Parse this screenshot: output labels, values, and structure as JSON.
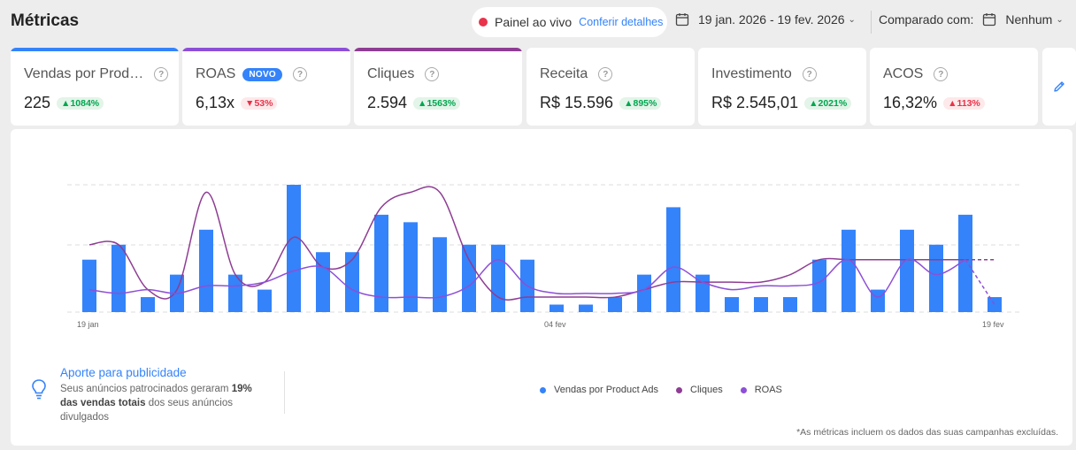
{
  "header": {
    "title": "Métricas",
    "live": {
      "label": "Painel ao vivo",
      "link": "Conferir detalhes"
    },
    "date_range": "19 jan. 2026 - 19 fev. 2026",
    "compare": {
      "label": "Comparado com:",
      "value": "Nenhum"
    }
  },
  "metrics": [
    {
      "title": "Vendas por Prod…",
      "value": "225",
      "delta": "1084%",
      "direction": "up",
      "accent": "#3483fa"
    },
    {
      "title": "ROAS",
      "badge": "NOVO",
      "value": "6,13x",
      "delta": "53%",
      "direction": "down",
      "accent": "#8d4fd7"
    },
    {
      "title": "Cliques",
      "value": "2.594",
      "delta": "1563%",
      "direction": "up",
      "accent": "#8e3d93"
    },
    {
      "title": "Receita",
      "value": "R$ 15.596",
      "delta": "895%",
      "direction": "up"
    },
    {
      "title": "Investimento",
      "value": "R$ 2.545,01",
      "delta": "2021%",
      "direction": "up"
    },
    {
      "title": "ACOS",
      "value": "16,32%",
      "delta": "113%",
      "direction": "down"
    }
  ],
  "insight": {
    "title": "Aporte para publicidade",
    "text_before": "Seus anúncios patrocinados geraram ",
    "text_bold": "19% das vendas totais",
    "text_after": " dos seus anúncios divulgados"
  },
  "footnote": "*As métricas incluem os dados das suas campanhas excluídas.",
  "colors": {
    "sales": "#3483fa",
    "clicks": "#8e3d93",
    "roas": "#8d4fd7",
    "positive": "#00a650",
    "negative": "#e8334a"
  },
  "chart_data": {
    "type": "bar",
    "x_tick_labels": [
      "19 jan",
      "04 fev",
      "19 fev"
    ],
    "grid": true,
    "legend_position": "bottom",
    "series": [
      {
        "name": "Vendas por Product Ads",
        "type": "bar",
        "color": "#3483fa",
        "values": [
          7,
          9,
          2,
          5,
          11,
          5,
          3,
          17,
          8,
          8,
          13,
          12,
          10,
          9,
          9,
          7,
          1,
          1,
          2,
          5,
          14,
          5,
          2,
          2,
          2,
          7,
          11,
          3,
          11,
          9,
          13,
          2
        ]
      },
      {
        "name": "Cliques",
        "type": "line",
        "color": "#8e3d93",
        "values": [
          9,
          9,
          3,
          3,
          16,
          5,
          4,
          10,
          6,
          7,
          14,
          16,
          16,
          7,
          2,
          2,
          2,
          2,
          2,
          3,
          4,
          4,
          4,
          4,
          5,
          7,
          7,
          7,
          7,
          7,
          7,
          7
        ]
      },
      {
        "name": "ROAS",
        "type": "line",
        "color": "#8d4fd7",
        "values": [
          3,
          2.5,
          3,
          2.5,
          3.5,
          3.5,
          4,
          5.5,
          6,
          3,
          2,
          2,
          2,
          3.5,
          7,
          3.5,
          2.5,
          2.5,
          2.5,
          3,
          6,
          4,
          3,
          3.5,
          3.5,
          4,
          7,
          2,
          7,
          5,
          7,
          1
        ]
      }
    ]
  }
}
